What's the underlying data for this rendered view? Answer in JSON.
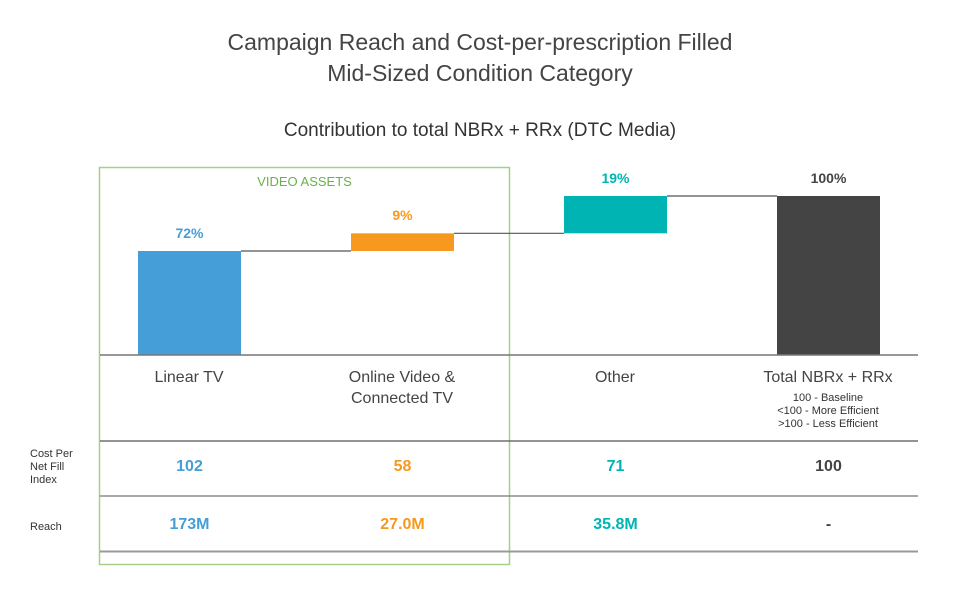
{
  "chart_data": {
    "type": "bar",
    "subtype": "waterfall",
    "title": "Campaign Reach and Cost-per-prescription Filled",
    "title_line2": "Mid-Sized Condition Category",
    "subtitle": "Contribution to total NBRx + RRx (DTC Media)",
    "group_label": "VIDEO ASSETS",
    "group_members": [
      "Linear TV",
      "Online Video & Connected TV"
    ],
    "categories": [
      "Linear TV",
      "Online Video & Connected TV",
      "Other",
      "Total NBRx + RRx"
    ],
    "category_lines": [
      [
        "Linear TV"
      ],
      [
        "Online Video &",
        "Connected TV"
      ],
      [
        "Other"
      ],
      [
        "Total NBRx + RRx"
      ]
    ],
    "values": [
      72,
      9,
      19,
      100
    ],
    "value_labels": [
      "72%",
      "9%",
      "19%",
      "100%"
    ],
    "colors": [
      "#459ed8",
      "#f7991f",
      "#00b4b4",
      "#444444"
    ],
    "index_note": [
      "100 - Baseline",
      "<100 - More Efficient",
      ">100 - Less Efficient"
    ],
    "table": {
      "row_labels": [
        [
          "Cost Per",
          "Net Fill",
          "Index"
        ],
        [
          "Reach"
        ]
      ],
      "cost_per_net_fill_index": [
        "102",
        "58",
        "71",
        "100"
      ],
      "reach": [
        "173M",
        "27.0M",
        "35.8M",
        "-"
      ]
    },
    "ylim": [
      0,
      100
    ],
    "grid": false,
    "legend": "none"
  }
}
